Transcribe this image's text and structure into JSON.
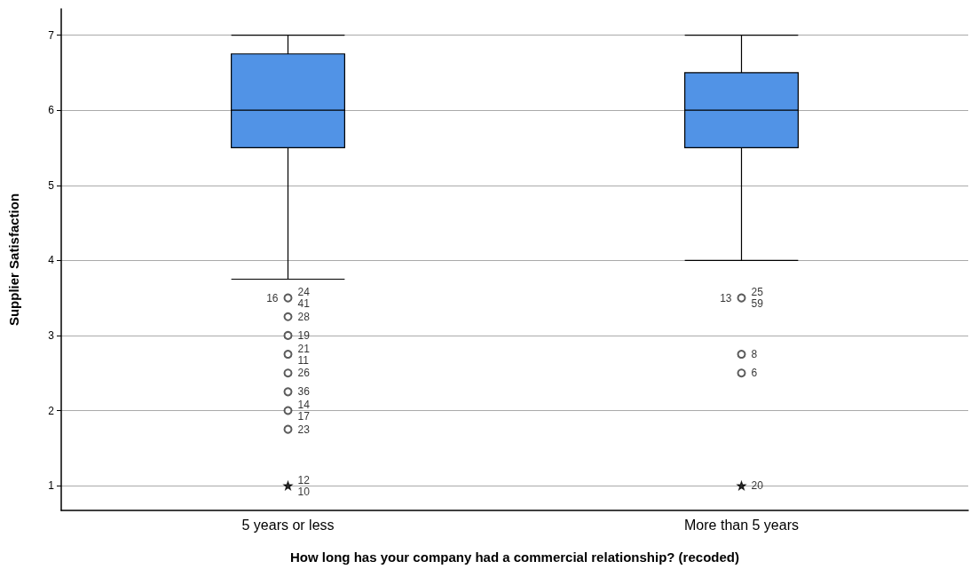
{
  "chart_data": {
    "type": "box",
    "xlabel": "How long has your company had a commercial relationship? (recoded)",
    "ylabel": "Supplier Satisfaction",
    "categories": [
      "5 years or less",
      "More than 5 years"
    ],
    "color": "#5193e6",
    "boxes": [
      {
        "low": 3.75,
        "q1": 5.5,
        "median": 6,
        "q3": 6.75,
        "high": 7
      },
      {
        "low": 4,
        "q1": 5.5,
        "median": 6,
        "q3": 6.5,
        "high": 7
      }
    ],
    "series": [
      {
        "type": "scatter",
        "marker": "circle",
        "color": "#333333",
        "x": [
          "5 years or less",
          "5 years or less",
          "5 years or less",
          "5 years or less",
          "5 years or less",
          "5 years or less",
          "5 years or less",
          "5 years or less",
          "More than 5 years",
          "More than 5 years",
          "More than 5 years"
        ],
        "values": [
          3.5,
          3.25,
          3.0,
          2.75,
          2.5,
          2.25,
          2.0,
          1.75,
          3.5,
          2.75,
          2.5
        ]
      },
      {
        "type": "scatter",
        "marker": "star",
        "color": "#000000",
        "x": [
          "5 years or less",
          "More than 5 years"
        ],
        "values": [
          1,
          1
        ]
      }
    ],
    "annotations": [
      {
        "text": "24",
        "x": "5 years or less",
        "y": 3.5
      },
      {
        "text": "41",
        "x": "5 years or less",
        "y": 3.5
      },
      {
        "text": "16",
        "x": "5 years or less",
        "y": 3.5
      },
      {
        "text": "28",
        "x": "5 years or less",
        "y": 3.25
      },
      {
        "text": "19",
        "x": "5 years or less",
        "y": 3.0
      },
      {
        "text": "21",
        "x": "5 years or less",
        "y": 2.75
      },
      {
        "text": "11",
        "x": "5 years or less",
        "y": 2.75
      },
      {
        "text": "26",
        "x": "5 years or less",
        "y": 2.5
      },
      {
        "text": "36",
        "x": "5 years or less",
        "y": 2.25
      },
      {
        "text": "14",
        "x": "5 years or less",
        "y": 2.0
      },
      {
        "text": "17",
        "x": "5 years or less",
        "y": 2.0
      },
      {
        "text": "23",
        "x": "5 years or less",
        "y": 1.75
      },
      {
        "text": "12",
        "x": "5 years or less",
        "y": 1
      },
      {
        "text": "10",
        "x": "5 years or less",
        "y": 1
      },
      {
        "text": "25",
        "x": "More than 5 years",
        "y": 3.5
      },
      {
        "text": "59",
        "x": "More than 5 years",
        "y": 3.5
      },
      {
        "text": "13",
        "x": "More than 5 years",
        "y": 3.5
      },
      {
        "text": "8",
        "x": "More than 5 years",
        "y": 2.75
      },
      {
        "text": "6",
        "x": "More than 5 years",
        "y": 2.5
      },
      {
        "text": "20",
        "x": "More than 5 years",
        "y": 1
      }
    ],
    "ylim": [
      0.67,
      7.35
    ],
    "yticks": [
      1,
      2,
      3,
      4,
      5,
      6,
      7
    ],
    "grid": "y"
  }
}
